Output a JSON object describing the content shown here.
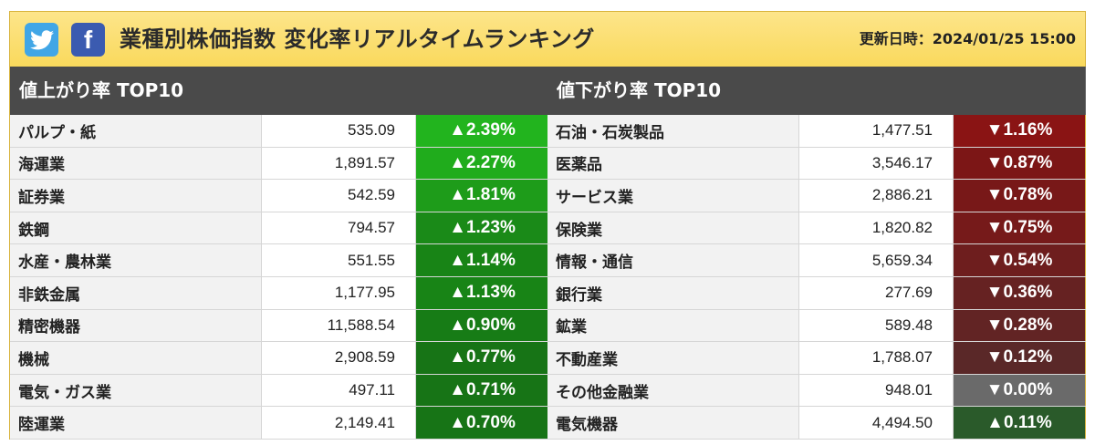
{
  "header": {
    "title": "業種別株価指数 変化率リアルタイムランキング",
    "updated": "更新日時：2024/01/25 15:00",
    "twitter_icon": "twitter-icon",
    "facebook_icon": "facebook-icon",
    "facebook_glyph": "f"
  },
  "gainers": {
    "heading": "値上がり率 TOP10",
    "rows": [
      {
        "name": "パルプ・紙",
        "value": "535.09",
        "change": "▲2.39%",
        "color": "#22b41e"
      },
      {
        "name": "海運業",
        "value": "1,891.57",
        "change": "▲2.27%",
        "color": "#20ac1c"
      },
      {
        "name": "証券業",
        "value": "542.59",
        "change": "▲1.81%",
        "color": "#1e9c1a"
      },
      {
        "name": "鉄鋼",
        "value": "794.57",
        "change": "▲1.23%",
        "color": "#1a8a18"
      },
      {
        "name": "水産・農林業",
        "value": "551.55",
        "change": "▲1.14%",
        "color": "#188416"
      },
      {
        "name": "非鉄金属",
        "value": "1,177.95",
        "change": "▲1.13%",
        "color": "#188416"
      },
      {
        "name": "精密機器",
        "value": "11,588.54",
        "change": "▲0.90%",
        "color": "#177c16"
      },
      {
        "name": "機械",
        "value": "2,908.59",
        "change": "▲0.77%",
        "color": "#177416"
      },
      {
        "name": "電気・ガス業",
        "value": "497.11",
        "change": "▲0.71%",
        "color": "#177416"
      },
      {
        "name": "陸運業",
        "value": "2,149.41",
        "change": "▲0.70%",
        "color": "#177416"
      }
    ]
  },
  "losers": {
    "heading": "値下がり率 TOP10",
    "rows": [
      {
        "name": "石油・石炭製品",
        "value": "1,477.51",
        "change": "▼1.16%",
        "color": "#8a1414"
      },
      {
        "name": "医薬品",
        "value": "3,546.17",
        "change": "▼0.87%",
        "color": "#7c1616"
      },
      {
        "name": "サービス業",
        "value": "2,886.21",
        "change": "▼0.78%",
        "color": "#781818"
      },
      {
        "name": "保険業",
        "value": "1,820.82",
        "change": "▼0.75%",
        "color": "#761a1a"
      },
      {
        "name": "情報・通信",
        "value": "5,659.34",
        "change": "▼0.54%",
        "color": "#6e1e1e"
      },
      {
        "name": "銀行業",
        "value": "277.69",
        "change": "▼0.36%",
        "color": "#662222"
      },
      {
        "name": "鉱業",
        "value": "589.48",
        "change": "▼0.28%",
        "color": "#622424"
      },
      {
        "name": "不動産業",
        "value": "1,788.07",
        "change": "▼0.12%",
        "color": "#5a2828"
      },
      {
        "name": "その他金融業",
        "value": "948.01",
        "change": "▼0.00%",
        "color": "#6a6a6a"
      },
      {
        "name": "電気機器",
        "value": "4,494.50",
        "change": "▲0.11%",
        "color": "#2a5a2a"
      }
    ]
  }
}
